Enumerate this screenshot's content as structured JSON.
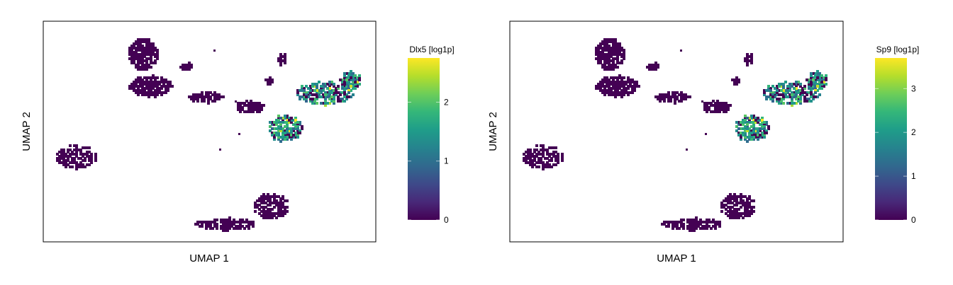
{
  "chart_data": [
    {
      "type": "heatmap",
      "plot_kind": "UMAP hexbin-style expression map",
      "xlabel": "UMAP 1",
      "ylabel": "UMAP 2",
      "colorbar": {
        "title": "Dlx5 [log1p]",
        "min": 0,
        "max": 2.75,
        "ticks": [
          0,
          1,
          2
        ],
        "tick_labels": [
          "0",
          "1",
          "2"
        ],
        "colormap": "viridis"
      },
      "grid": false,
      "expressed_regions": [
        {
          "region": "right-central",
          "high_value": 2.75
        }
      ]
    },
    {
      "type": "heatmap",
      "plot_kind": "UMAP hexbin-style expression map",
      "xlabel": "UMAP 1",
      "ylabel": "UMAP 2",
      "colorbar": {
        "title": "Sp9 [log1p]",
        "min": 0,
        "max": 3.7,
        "ticks": [
          0,
          1,
          2,
          3
        ],
        "tick_labels": [
          "0",
          "1",
          "2",
          "3"
        ],
        "colormap": "viridis"
      },
      "grid": false,
      "expressed_regions": [
        {
          "region": "right-central",
          "high_value": 3.7
        }
      ]
    }
  ],
  "colors": {
    "viridis": [
      "#440154",
      "#482878",
      "#3e4989",
      "#31688e",
      "#26828e",
      "#1f9e89",
      "#35b779",
      "#6ece58",
      "#b5de2b",
      "#fde725"
    ],
    "frame": "#000000",
    "background": "#ffffff"
  }
}
